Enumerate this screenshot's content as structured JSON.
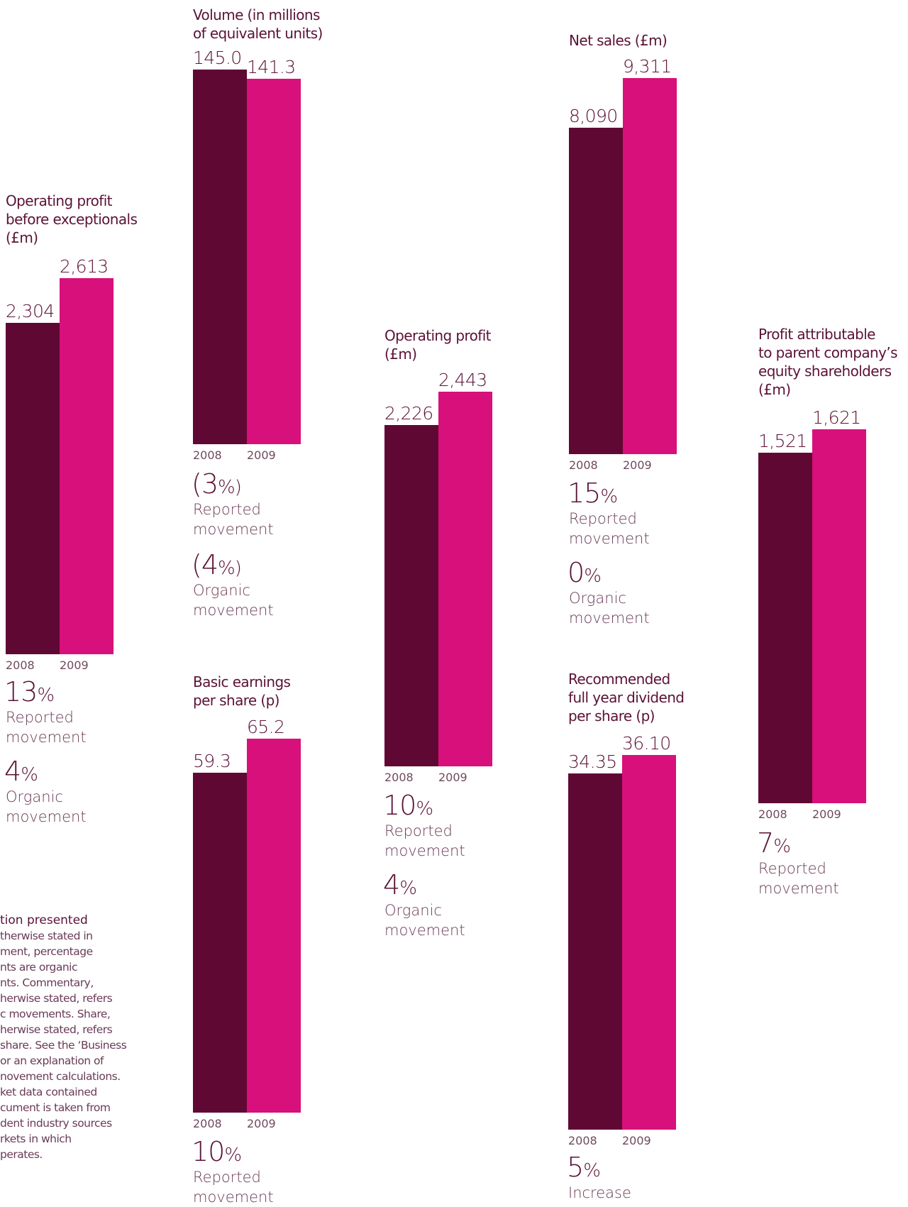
{
  "chart_data": [
    {
      "type": "bar",
      "title": "Operating profit\nbefore exceptionals\n(£m)",
      "categories": [
        "2008",
        "2009"
      ],
      "values": [
        2304,
        2613
      ],
      "value_labels": [
        "2,304",
        "2,613"
      ],
      "ylim": [
        0,
        2613
      ],
      "stats": [
        {
          "value": "13",
          "unit": "%",
          "label": "Reported\nmovement"
        },
        {
          "value": "4",
          "unit": "%",
          "label": "Organic\nmovement"
        }
      ]
    },
    {
      "type": "bar",
      "title": "Volume (in millions\nof equivalent units)",
      "categories": [
        "2008",
        "2009"
      ],
      "values": [
        145.0,
        141.3
      ],
      "value_labels": [
        "145.0",
        "141.3"
      ],
      "ylim": [
        0,
        145.0
      ],
      "stats": [
        {
          "value": "(3",
          "unit": "%)",
          "label": "Reported\nmovement"
        },
        {
          "value": "(4",
          "unit": "%)",
          "label": "Organic\nmovement"
        }
      ]
    },
    {
      "type": "bar",
      "title": "Basic earnings\nper share (p)",
      "categories": [
        "2008",
        "2009"
      ],
      "values": [
        59.3,
        65.2
      ],
      "value_labels": [
        "59.3",
        "65.2"
      ],
      "ylim": [
        0,
        65.2
      ],
      "stats": [
        {
          "value": "10",
          "unit": "%",
          "label": "Reported\nmovement"
        }
      ]
    },
    {
      "type": "bar",
      "title": "Operating profit\n(£m)",
      "categories": [
        "2008",
        "2009"
      ],
      "values": [
        2226,
        2443
      ],
      "value_labels": [
        "2,226",
        "2,443"
      ],
      "ylim": [
        0,
        2443
      ],
      "stats": [
        {
          "value": "10",
          "unit": "%",
          "label": "Reported\nmovement"
        },
        {
          "value": "4",
          "unit": "%",
          "label": "Organic\nmovement"
        }
      ]
    },
    {
      "type": "bar",
      "title": "Net sales (£m)",
      "categories": [
        "2008",
        "2009"
      ],
      "values": [
        8090,
        9311
      ],
      "value_labels": [
        "8,090",
        "9,311"
      ],
      "ylim": [
        0,
        9311
      ],
      "stats": [
        {
          "value": "15",
          "unit": "%",
          "label": "Reported\nmovement"
        },
        {
          "value": "0",
          "unit": "%",
          "label": "Organic\nmovement"
        }
      ]
    },
    {
      "type": "bar",
      "title": "Recommended\nfull year dividend\nper share (p)",
      "categories": [
        "2008",
        "2009"
      ],
      "values": [
        34.35,
        36.1
      ],
      "value_labels": [
        "34.35",
        "36.10"
      ],
      "ylim": [
        0,
        36.1
      ],
      "stats": [
        {
          "value": "5",
          "unit": "%",
          "label": "Increase"
        }
      ]
    },
    {
      "type": "bar",
      "title": "Profit attributable\nto parent company’s\nequity shareholders\n(£m)",
      "categories": [
        "2008",
        "2009"
      ],
      "values": [
        1521,
        1621
      ],
      "value_labels": [
        "1,521",
        "1,621"
      ],
      "ylim": [
        0,
        1621
      ],
      "stats": [
        {
          "value": "7",
          "unit": "%",
          "label": "Reported\nmovement"
        }
      ]
    }
  ],
  "colors": {
    "year_2008": "#600834",
    "year_2009": "#d8107b"
  },
  "note": {
    "title": "tion presented",
    "lines": [
      "therwise stated in",
      "ment, percentage",
      "nts are organic",
      "nts. Commentary,",
      "herwise stated, refers",
      "c movements. Share,",
      "herwise stated, refers",
      "share. See the ‘Business",
      "or an explanation of",
      "novement calculations.",
      "ket data contained",
      "cument is taken from",
      "dent industry sources",
      "rkets in which",
      "perates."
    ]
  }
}
